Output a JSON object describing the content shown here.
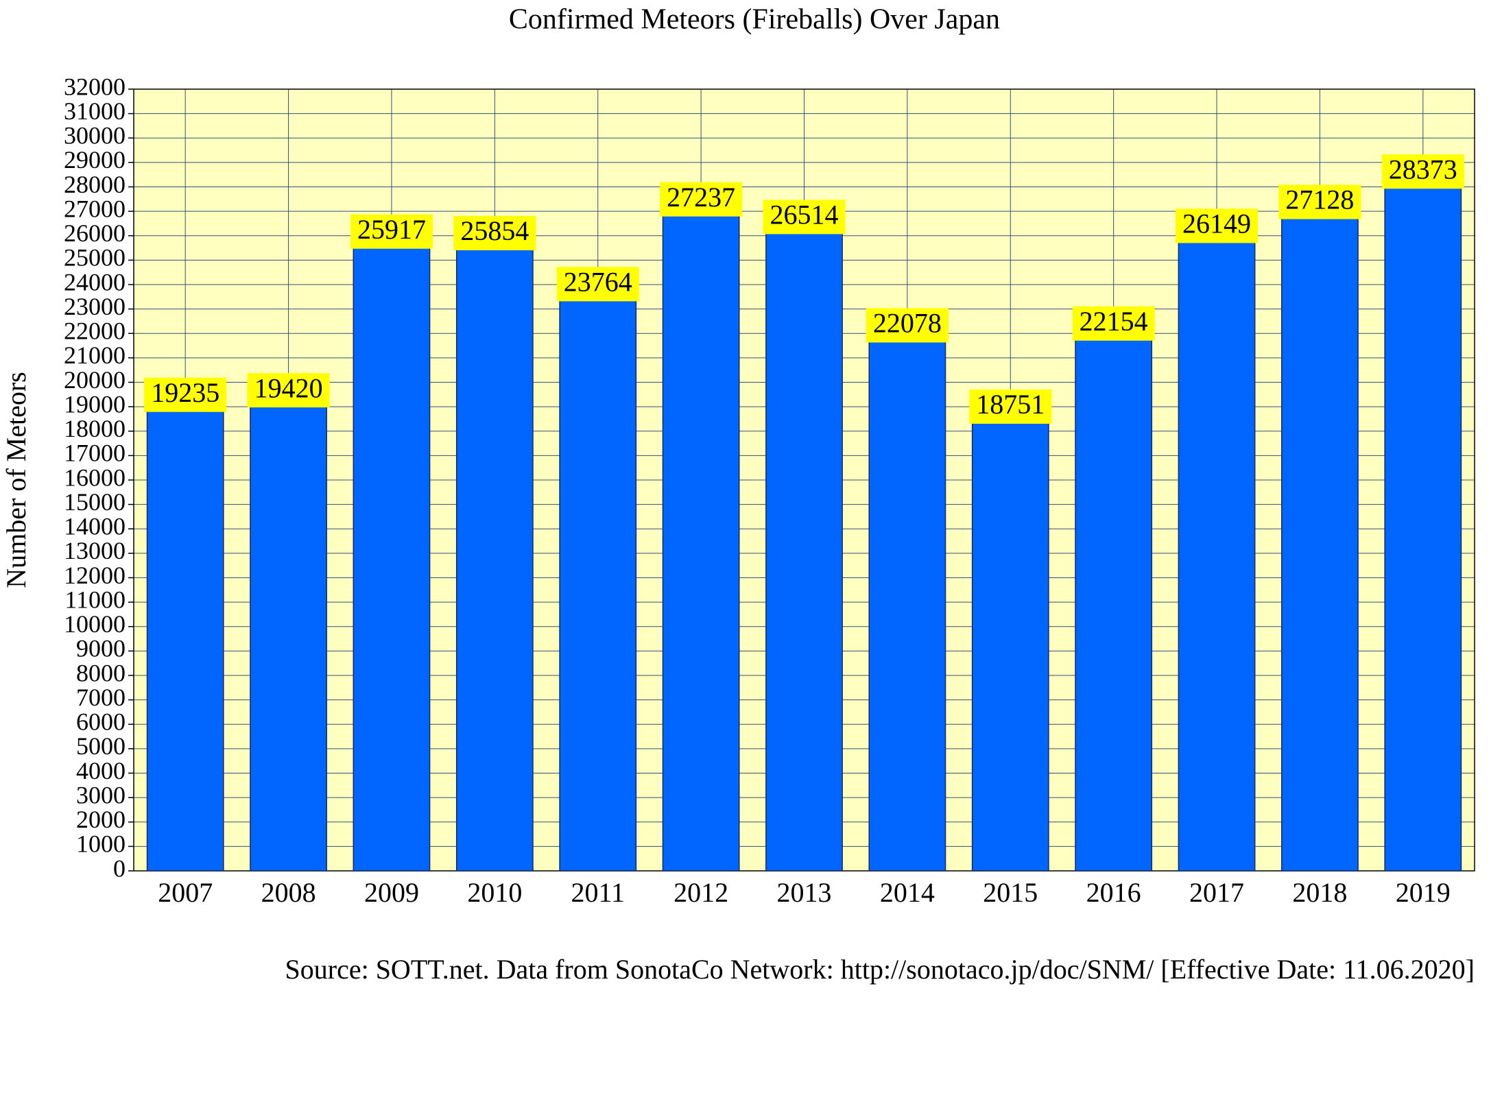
{
  "chart_data": {
    "type": "bar",
    "title": "Confirmed Meteors (Fireballs) Over Japan",
    "y_label": "Number of Meteors",
    "source": "Source: SOTT.net. Data from SonotaCo Network: http://sonotaco.jp/doc/SNM/ [Effective Date: 11.06.2020]",
    "categories": [
      "2007",
      "2008",
      "2009",
      "2010",
      "2011",
      "2012",
      "2013",
      "2014",
      "2015",
      "2016",
      "2017",
      "2018",
      "2019"
    ],
    "values": [
      19235,
      19420,
      25917,
      25854,
      23764,
      27237,
      26514,
      22078,
      18751,
      22154,
      26149,
      27128,
      28373
    ],
    "color": "#0066ff",
    "label_background": "#ffff00",
    "plot_background": "#ffffc0",
    "ylim": [
      0,
      32000
    ],
    "yticks": [
      0,
      1000,
      2000,
      3000,
      4000,
      5000,
      6000,
      7000,
      8000,
      9000,
      10000,
      11000,
      12000,
      13000,
      14000,
      15000,
      16000,
      17000,
      18000,
      19000,
      20000,
      21000,
      22000,
      23000,
      24000,
      25000,
      26000,
      27000,
      28000,
      29000,
      30000,
      31000,
      32000
    ],
    "grid": true
  }
}
